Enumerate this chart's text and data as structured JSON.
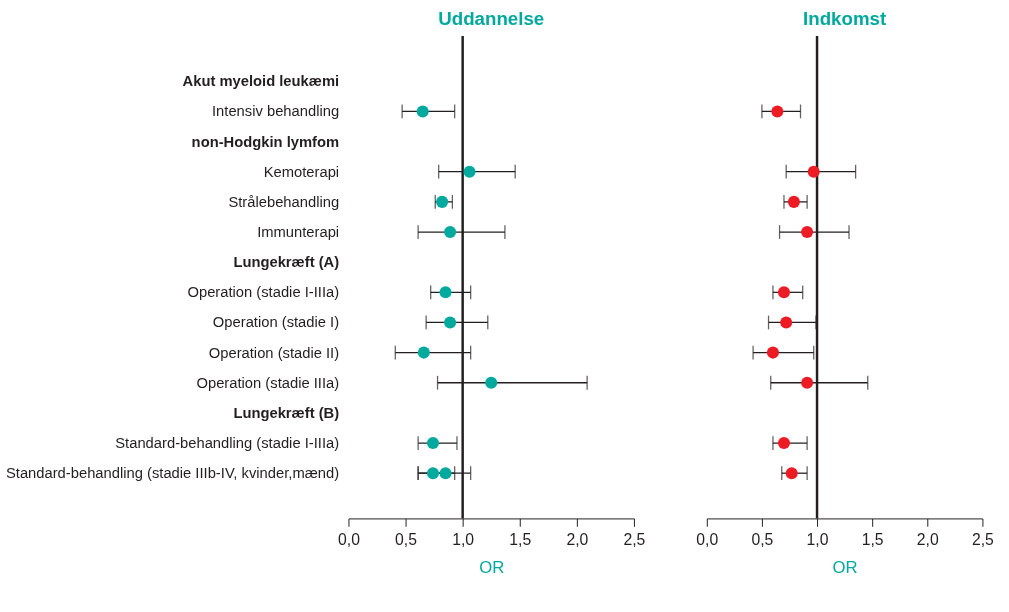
{
  "chart_data": [
    {
      "type": "scatter",
      "orientation": "horizontal",
      "title": "Uddannelse",
      "xlabel": "OR",
      "marker": "circle",
      "categories": [
        "Akut myeloid leukæmi",
        "Intensiv behandling",
        "non-Hodgkin lymfom",
        "Kemoterapi",
        "Strålebehandling",
        "Immunterapi",
        "Lungekræft (A)",
        "Operation (stadie I-IIIa)",
        "Operation (stadie I)",
        "Operation (stadie II)",
        "Operation (stadie IIIa)",
        "Lungekræft (B)",
        "Standard-behandling (stadie I-IIIa)",
        "Standard-behandling (stadie IIIb-IV, kvinder,mænd)"
      ],
      "series": [
        {
          "color": "#00a99d",
          "values": [
            null,
            0.65,
            null,
            1.06,
            0.82,
            0.89,
            null,
            0.85,
            0.89,
            0.66,
            1.25,
            null,
            0.74,
            0.74
          ],
          "errors": [
            null,
            [
              0.47,
              0.93
            ],
            null,
            [
              0.79,
              1.46
            ],
            [
              0.76,
              0.91
            ],
            [
              0.61,
              1.37
            ],
            null,
            [
              0.72,
              1.07
            ],
            [
              0.68,
              1.22
            ],
            [
              0.41,
              1.07
            ],
            [
              0.78,
              2.09
            ],
            null,
            [
              0.61,
              0.95
            ],
            [
              0.61,
              0.93
            ]
          ]
        },
        {
          "color": "#00a99d",
          "values": [
            null,
            null,
            null,
            null,
            null,
            null,
            null,
            null,
            null,
            null,
            null,
            null,
            null,
            0.85
          ],
          "errors": [
            null,
            null,
            null,
            null,
            null,
            null,
            null,
            null,
            null,
            null,
            null,
            null,
            null,
            [
              0.61,
              1.07
            ]
          ]
        }
      ],
      "xlim": [
        0,
        2.5
      ],
      "xticks": [
        {
          "value": 0,
          "label": "0,0"
        },
        {
          "value": 0.5,
          "label": "0,5"
        },
        {
          "value": 1,
          "label": "1,0"
        },
        {
          "value": 1.5,
          "label": "1,5"
        },
        {
          "value": 2,
          "label": "2,0"
        },
        {
          "value": 2.5,
          "label": "2,5"
        }
      ],
      "ref_lines": [
        {
          "axis": "x",
          "value": 1,
          "color": "#231f20"
        }
      ]
    },
    {
      "type": "scatter",
      "orientation": "horizontal",
      "title": "Indkomst",
      "xlabel": "OR",
      "marker": "circle",
      "tick_labels": "x",
      "categories": [
        null,
        null,
        null,
        null,
        null,
        null,
        null,
        null,
        null,
        null,
        null,
        null,
        null,
        null
      ],
      "series": [
        {
          "color": "#ed1c24",
          "values": [
            null,
            0.64,
            null,
            0.97,
            0.79,
            0.91,
            null,
            0.7,
            0.72,
            0.6,
            0.91,
            null,
            0.7,
            0.77
          ],
          "errors": [
            null,
            [
              0.5,
              0.85
            ],
            null,
            [
              0.72,
              1.35
            ],
            [
              0.7,
              0.91
            ],
            [
              0.66,
              1.29
            ],
            null,
            [
              0.6,
              0.87
            ],
            [
              0.56,
              0.99
            ],
            [
              0.42,
              0.97
            ],
            [
              0.58,
              1.46
            ],
            null,
            [
              0.6,
              0.91
            ],
            [
              0.68,
              0.91
            ]
          ]
        }
      ],
      "xlim": [
        0,
        2.5
      ],
      "xticks": [
        {
          "value": 0,
          "label": "0,0"
        },
        {
          "value": 0.5,
          "label": "0,5"
        },
        {
          "value": 1,
          "label": "1,0"
        },
        {
          "value": 1.5,
          "label": "1,5"
        },
        {
          "value": 2,
          "label": "2,0"
        },
        {
          "value": 2.5,
          "label": "2,5"
        }
      ],
      "ref_lines": [
        {
          "axis": "x",
          "value": 1,
          "color": "#231f20"
        }
      ]
    }
  ]
}
